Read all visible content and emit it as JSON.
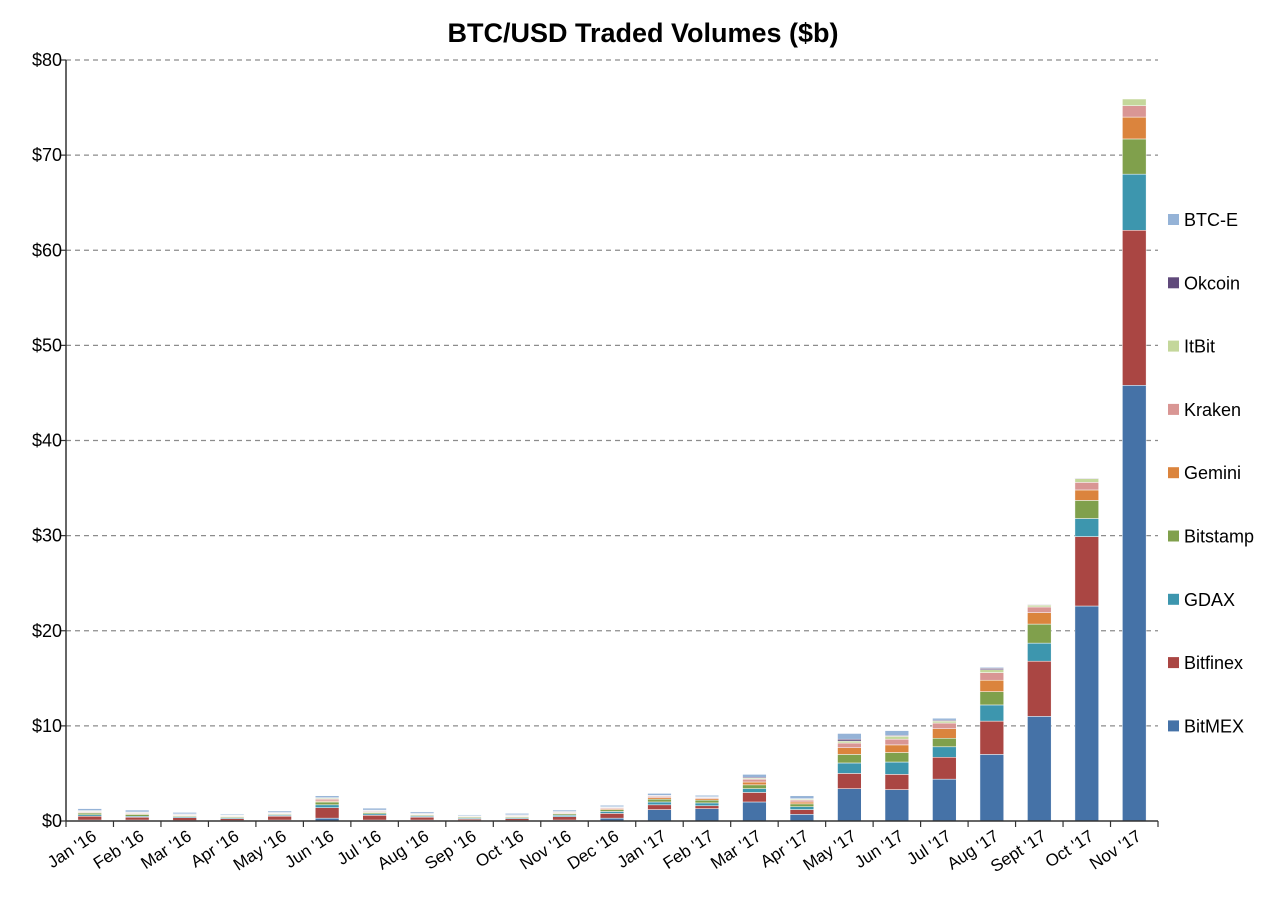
{
  "chart_data": {
    "type": "bar",
    "stacked": true,
    "title": "BTC/USD Traded Volumes ($b)",
    "xlabel": "",
    "ylabel": "",
    "ylim": [
      0,
      80
    ],
    "yticks": [
      0,
      10,
      20,
      30,
      40,
      50,
      60,
      70,
      80
    ],
    "ytick_labels": [
      "$0",
      "$10",
      "$20",
      "$30",
      "$40",
      "$50",
      "$60",
      "$70",
      "$80"
    ],
    "grid": "horizontal-dashed",
    "legend_position": "right",
    "categories": [
      "Jan '16",
      "Feb '16",
      "Mar '16",
      "Apr '16",
      "May '16",
      "Jun '16",
      "Jul '16",
      "Aug '16",
      "Sep '16",
      "Oct '16",
      "Nov '16",
      "Dec '16",
      "Jan '17",
      "Feb '17",
      "Mar '17",
      "Apr '17",
      "May '17",
      "Jun '17",
      "Jul '17",
      "Aug '17",
      "Sept '17",
      "Oct '17",
      "Nov '17"
    ],
    "series": [
      {
        "name": "BitMEX",
        "color": "#4572A7",
        "values": [
          0.1,
          0.1,
          0.05,
          0.05,
          0.1,
          0.3,
          0.1,
          0.1,
          0.05,
          0.05,
          0.1,
          0.3,
          1.2,
          1.3,
          2.0,
          0.7,
          3.4,
          3.3,
          4.4,
          7.0,
          11.0,
          22.6,
          45.8
        ]
      },
      {
        "name": "Bitfinex",
        "color": "#AA4643",
        "values": [
          0.4,
          0.3,
          0.3,
          0.2,
          0.4,
          1.1,
          0.5,
          0.3,
          0.15,
          0.2,
          0.35,
          0.5,
          0.5,
          0.3,
          1.0,
          0.5,
          1.6,
          1.6,
          2.3,
          3.5,
          5.8,
          7.3,
          16.3
        ]
      },
      {
        "name": "GDAX",
        "color": "#3D96AE",
        "values": [
          0.15,
          0.1,
          0.1,
          0.1,
          0.1,
          0.3,
          0.15,
          0.1,
          0.1,
          0.1,
          0.15,
          0.2,
          0.3,
          0.3,
          0.4,
          0.3,
          1.1,
          1.3,
          1.1,
          1.7,
          1.9,
          1.9,
          5.9
        ]
      },
      {
        "name": "Bitstamp",
        "color": "#80A04C",
        "values": [
          0.2,
          0.2,
          0.1,
          0.1,
          0.1,
          0.3,
          0.15,
          0.1,
          0.1,
          0.1,
          0.15,
          0.2,
          0.3,
          0.3,
          0.4,
          0.3,
          0.9,
          1.0,
          0.9,
          1.4,
          2.0,
          1.9,
          3.7
        ]
      },
      {
        "name": "Gemini",
        "color": "#DB843D",
        "values": [
          0.05,
          0.05,
          0.05,
          0.05,
          0.05,
          0.1,
          0.05,
          0.05,
          0.05,
          0.05,
          0.05,
          0.1,
          0.15,
          0.15,
          0.3,
          0.2,
          0.7,
          0.8,
          1.0,
          1.2,
          1.2,
          1.1,
          2.3
        ]
      },
      {
        "name": "Kraken",
        "color": "#D99694",
        "values": [
          0.1,
          0.1,
          0.05,
          0.05,
          0.05,
          0.2,
          0.1,
          0.05,
          0.05,
          0.05,
          0.1,
          0.1,
          0.15,
          0.1,
          0.3,
          0.2,
          0.5,
          0.6,
          0.6,
          0.8,
          0.6,
          0.8,
          1.2
        ]
      },
      {
        "name": "ItBit",
        "color": "#C4D79B",
        "values": [
          0.05,
          0.05,
          0.05,
          0.05,
          0.05,
          0.1,
          0.05,
          0.05,
          0.05,
          0.05,
          0.05,
          0.05,
          0.05,
          0.05,
          0.1,
          0.1,
          0.2,
          0.3,
          0.2,
          0.3,
          0.2,
          0.4,
          0.7
        ]
      },
      {
        "name": "Okcoin",
        "color": "#604A7B",
        "values": [
          0.05,
          0.05,
          0.05,
          0.0,
          0.05,
          0.05,
          0.05,
          0.05,
          0.0,
          0.05,
          0.05,
          0.05,
          0.05,
          0.05,
          0.1,
          0.05,
          0.2,
          0.1,
          0.1,
          0.15,
          0.05,
          0.05,
          0.0
        ]
      },
      {
        "name": "BTC-E",
        "color": "#95B3D7",
        "values": [
          0.2,
          0.2,
          0.15,
          0.1,
          0.15,
          0.2,
          0.2,
          0.15,
          0.1,
          0.15,
          0.15,
          0.15,
          0.2,
          0.15,
          0.3,
          0.3,
          0.6,
          0.5,
          0.2,
          0.1,
          0.0,
          0.0,
          0.0
        ]
      }
    ],
    "legend_order": [
      "BTC-E",
      "Okcoin",
      "ItBit",
      "Kraken",
      "Gemini",
      "Bitstamp",
      "GDAX",
      "Bitfinex",
      "BitMEX"
    ]
  }
}
